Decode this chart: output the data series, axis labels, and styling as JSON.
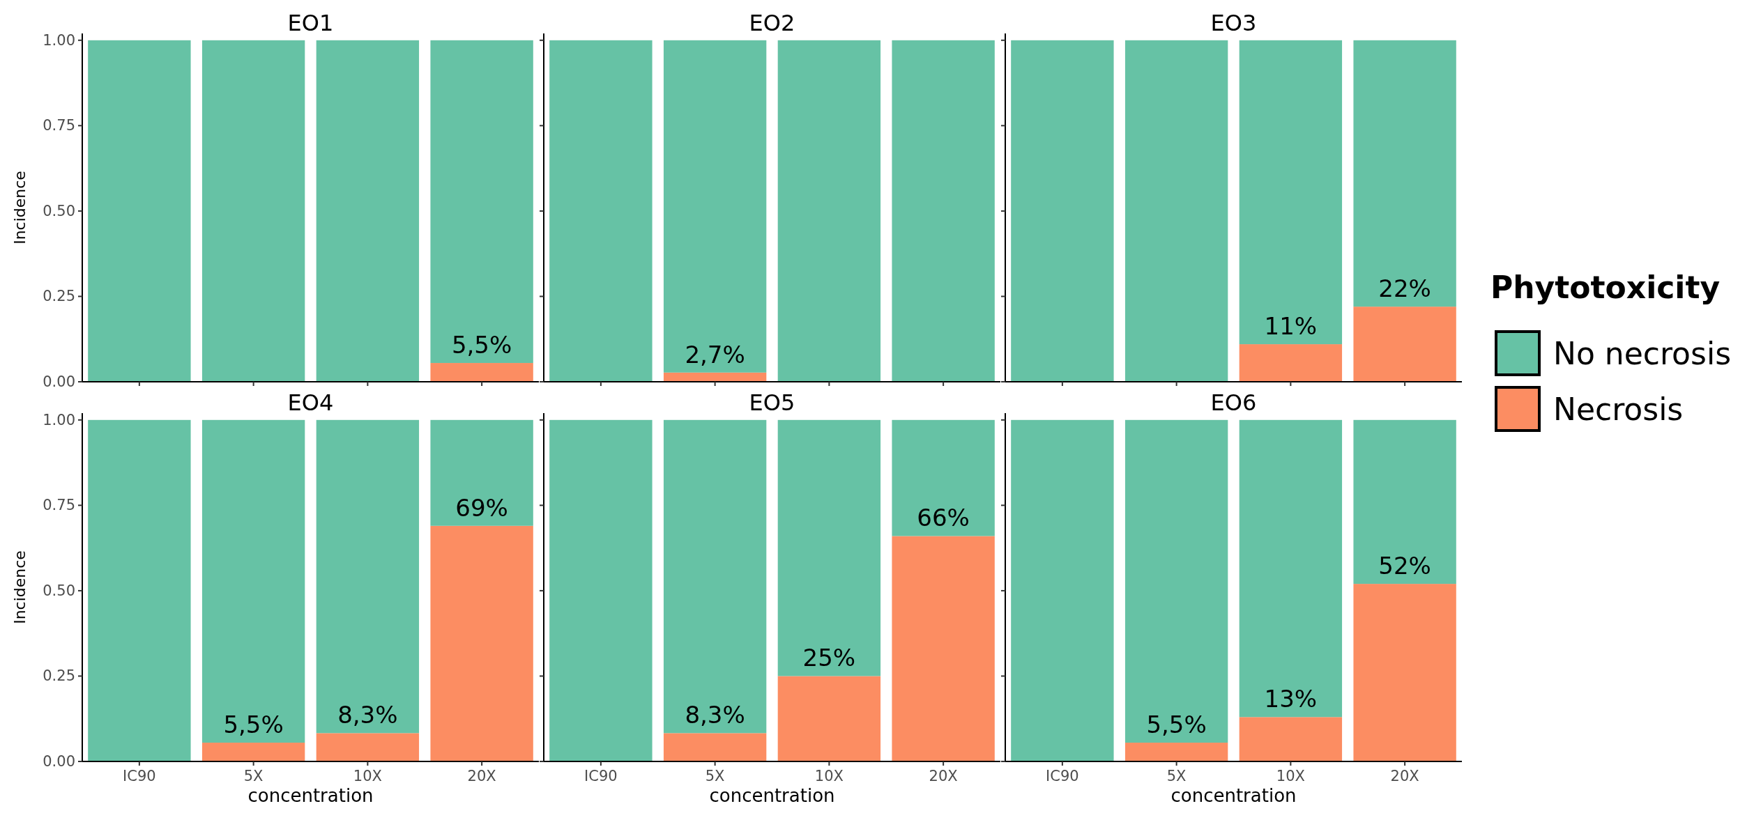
{
  "chart_data": [
    {
      "type": "bar",
      "stacked": true,
      "title": "EO1",
      "ylabel": "Incidence",
      "categories": [
        null,
        null,
        null,
        null
      ],
      "ylim": [
        0,
        1.02
      ],
      "yticks": [
        {
          "value": 0,
          "label": "0.00"
        },
        {
          "value": 0.25,
          "label": "0.25"
        },
        {
          "value": 0.5,
          "label": "0.50"
        },
        {
          "value": 0.75,
          "label": "0.75"
        },
        {
          "value": 1,
          "label": "1.00"
        }
      ],
      "series": [
        {
          "color": "#fc8d62",
          "values": [
            0,
            0,
            0,
            0.055
          ],
          "value_labels": [
            null,
            null,
            null,
            "5,5%"
          ]
        },
        {
          "color": "#66c2a5",
          "values": [
            1,
            1,
            1,
            0.945
          ]
        }
      ]
    },
    {
      "type": "bar",
      "stacked": true,
      "title": "EO2",
      "categories": [
        null,
        null,
        null,
        null
      ],
      "ylim": [
        0,
        1.02
      ],
      "yticks": [
        {
          "value": 0,
          "label": null
        },
        {
          "value": 0.25,
          "label": null
        },
        {
          "value": 0.5,
          "label": null
        },
        {
          "value": 0.75,
          "label": null
        },
        {
          "value": 1,
          "label": null
        }
      ],
      "series": [
        {
          "color": "#fc8d62",
          "values": [
            0,
            0.027,
            0,
            0
          ],
          "value_labels": [
            null,
            "2,7%",
            null,
            null
          ]
        },
        {
          "color": "#66c2a5",
          "values": [
            1,
            0.973,
            1,
            1
          ]
        }
      ]
    },
    {
      "type": "bar",
      "stacked": true,
      "title": "EO3",
      "categories": [
        null,
        null,
        null,
        null
      ],
      "ylim": [
        0,
        1.02
      ],
      "yticks": [
        {
          "value": 0,
          "label": null
        },
        {
          "value": 0.25,
          "label": null
        },
        {
          "value": 0.5,
          "label": null
        },
        {
          "value": 0.75,
          "label": null
        },
        {
          "value": 1,
          "label": null
        }
      ],
      "legend": "right",
      "legend_title": "Phytotoxicity",
      "series": [
        {
          "name": "Necrosis",
          "color": "#fc8d62",
          "values": [
            0,
            0,
            0.11,
            0.22
          ],
          "value_labels": [
            null,
            null,
            "11%",
            "22%"
          ]
        },
        {
          "name": "No necrosis",
          "color": "#66c2a5",
          "values": [
            1,
            1,
            0.89,
            0.78
          ]
        }
      ]
    },
    {
      "type": "bar",
      "stacked": true,
      "title": "EO4",
      "xlabel": "concentration",
      "ylabel": "Incidence",
      "categories": [
        "IC90",
        "5X",
        "10X",
        "20X"
      ],
      "ylim": [
        0,
        1.02
      ],
      "yticks": [
        {
          "value": 0,
          "label": "0.00"
        },
        {
          "value": 0.25,
          "label": "0.25"
        },
        {
          "value": 0.5,
          "label": "0.50"
        },
        {
          "value": 0.75,
          "label": "0.75"
        },
        {
          "value": 1,
          "label": "1.00"
        }
      ],
      "series": [
        {
          "color": "#fc8d62",
          "values": [
            0,
            0.055,
            0.083,
            0.69
          ],
          "value_labels": [
            null,
            "5,5%",
            "8,3%",
            "69%"
          ]
        },
        {
          "color": "#66c2a5",
          "values": [
            1,
            0.945,
            0.917,
            0.31
          ]
        }
      ]
    },
    {
      "type": "bar",
      "stacked": true,
      "title": "EO5",
      "xlabel": "concentration",
      "categories": [
        "IC90",
        "5X",
        "10X",
        "20X"
      ],
      "ylim": [
        0,
        1.02
      ],
      "yticks": [
        {
          "value": 0,
          "label": null
        },
        {
          "value": 0.25,
          "label": null
        },
        {
          "value": 0.5,
          "label": null
        },
        {
          "value": 0.75,
          "label": null
        },
        {
          "value": 1,
          "label": null
        }
      ],
      "series": [
        {
          "color": "#fc8d62",
          "values": [
            0,
            0.083,
            0.25,
            0.66
          ],
          "value_labels": [
            null,
            "8,3%",
            "25%",
            "66%"
          ]
        },
        {
          "color": "#66c2a5",
          "values": [
            1,
            0.917,
            0.75,
            0.34
          ]
        }
      ]
    },
    {
      "type": "bar",
      "stacked": true,
      "title": "EO6",
      "xlabel": "concentration",
      "categories": [
        "IC90",
        "5X",
        "10X",
        "20X"
      ],
      "ylim": [
        0,
        1.02
      ],
      "yticks": [
        {
          "value": 0,
          "label": null
        },
        {
          "value": 0.25,
          "label": null
        },
        {
          "value": 0.5,
          "label": null
        },
        {
          "value": 0.75,
          "label": null
        },
        {
          "value": 1,
          "label": null
        }
      ],
      "series": [
        {
          "color": "#fc8d62",
          "values": [
            0,
            0.055,
            0.13,
            0.52
          ],
          "value_labels": [
            null,
            "5,5%",
            "13%",
            "52%"
          ]
        },
        {
          "color": "#66c2a5",
          "values": [
            1,
            0.945,
            0.87,
            0.48
          ]
        }
      ]
    }
  ]
}
